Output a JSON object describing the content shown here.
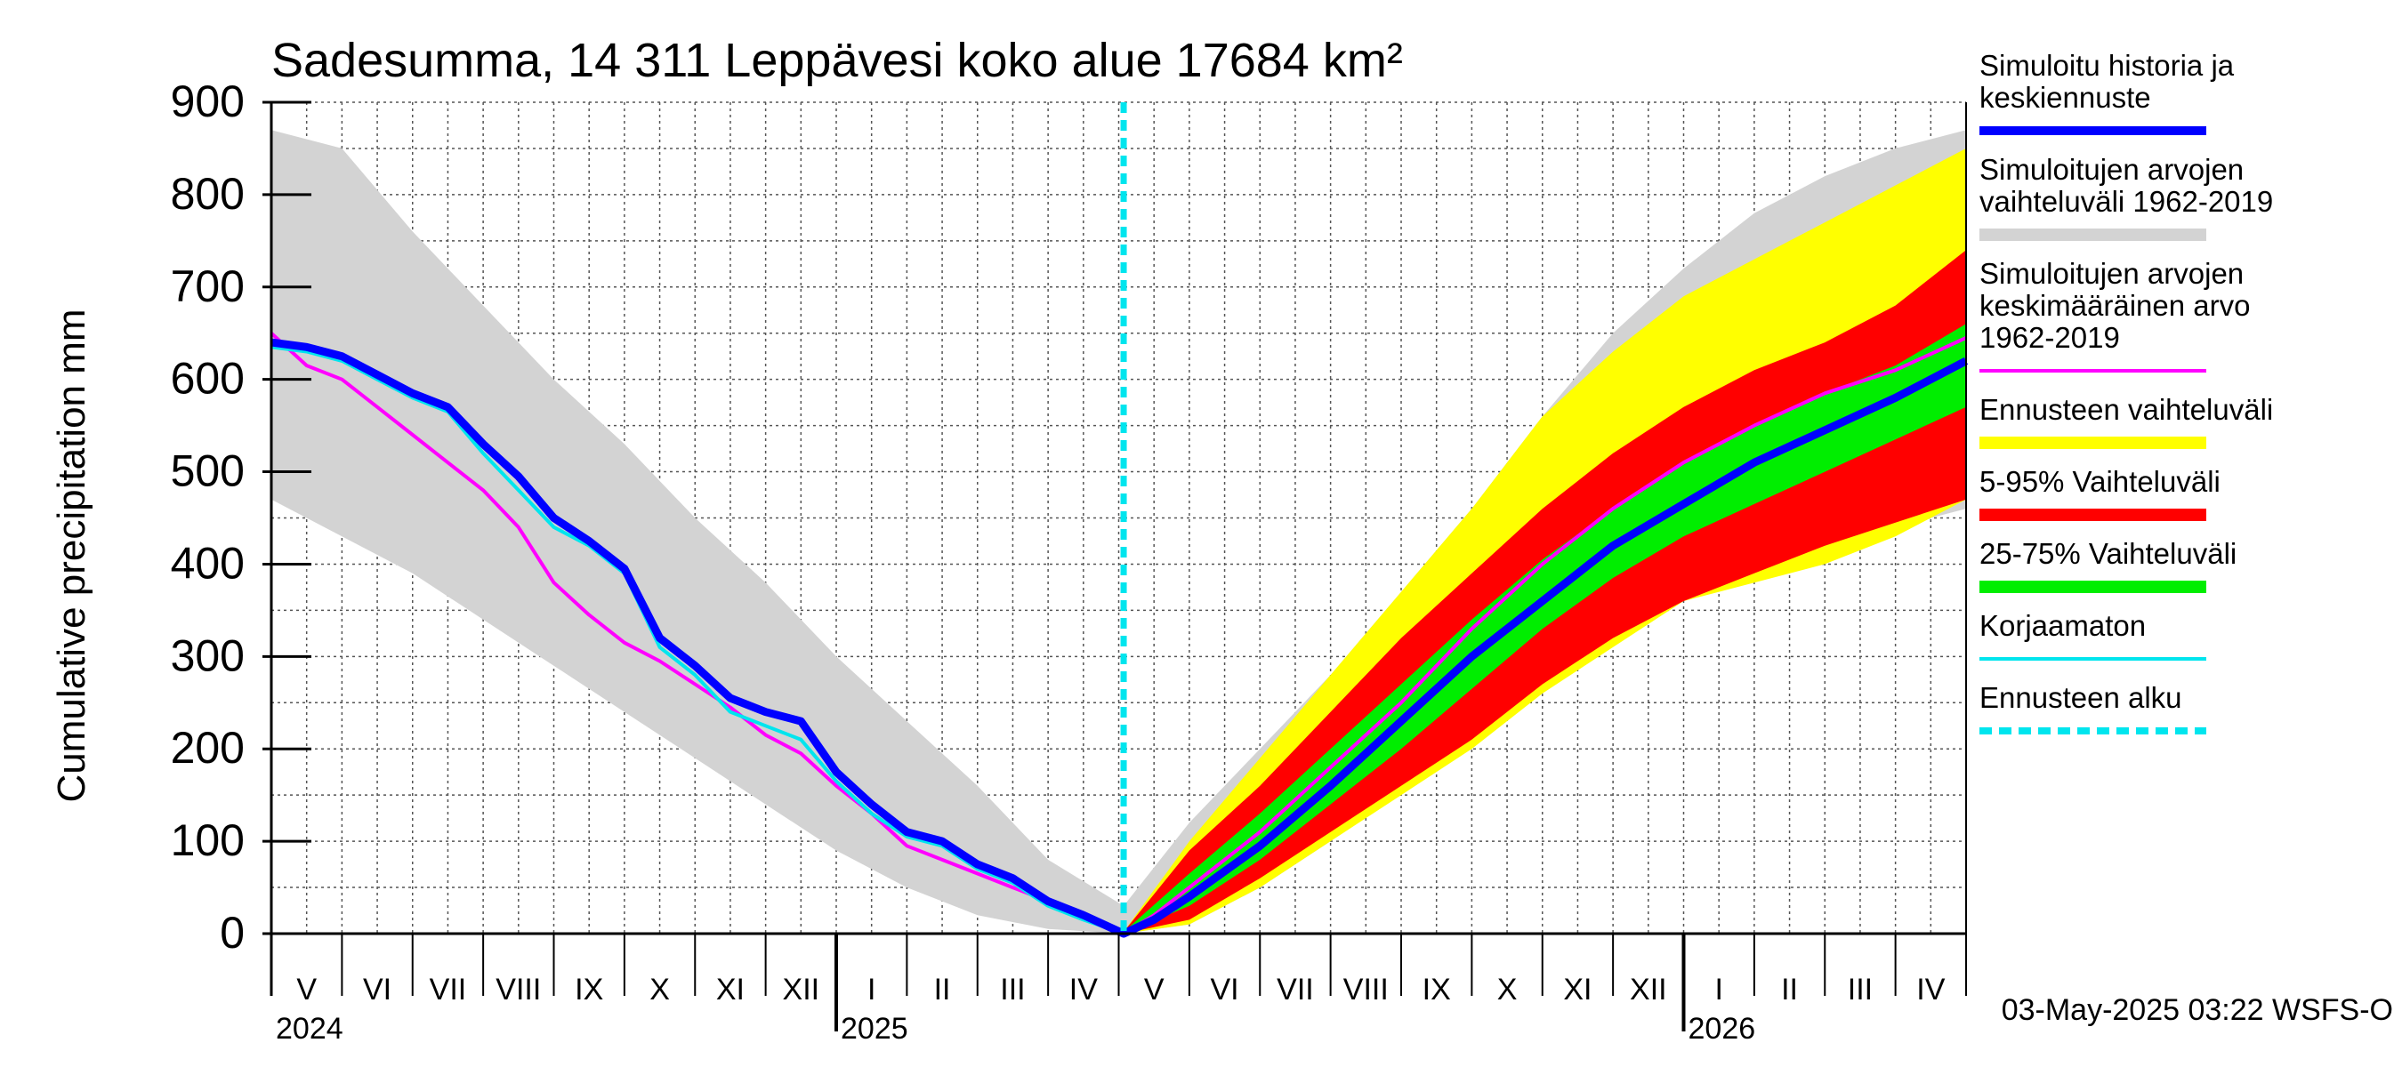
{
  "chart_data": {
    "type": "area",
    "title": "Sadesumma, 14 311 Leppävesi koko alue 17684 km²",
    "ylabel": "Cumulative precipitation   mm",
    "xlabel": "",
    "ylim": [
      0,
      900
    ],
    "yticks": [
      0,
      100,
      200,
      300,
      400,
      500,
      600,
      700,
      800,
      900
    ],
    "x_unit": "months since 1 May 2024",
    "xlim": [
      0,
      24
    ],
    "forecast_start": 12.07,
    "months": [
      "V",
      "VI",
      "VII",
      "VIII",
      "IX",
      "X",
      "XI",
      "XII",
      "I",
      "II",
      "III",
      "IV",
      "V",
      "VI",
      "VII",
      "VIII",
      "IX",
      "X",
      "XI",
      "XII",
      "I",
      "II",
      "III",
      "IV"
    ],
    "years": [
      {
        "label": "2024",
        "x": 0
      },
      {
        "label": "2025",
        "x": 8
      },
      {
        "label": "2026",
        "x": 20
      }
    ],
    "timestamp": "03-May-2025 03:22 WSFS-O",
    "legend": [
      {
        "label": "Simuloitu historia ja keskiennuste",
        "lines": [
          "Simuloitu historia ja",
          "keskiennuste"
        ],
        "color": "#0000ff",
        "style": "thick"
      },
      {
        "label": "Simuloitujen arvojen vaihteluväli 1962-2019",
        "lines": [
          "Simuloitujen arvojen",
          "vaihteluväli 1962-2019"
        ],
        "color": "#d3d3d3",
        "style": "band"
      },
      {
        "label": "Simuloitujen arvojen keskimääräinen arvo 1962-2019",
        "lines": [
          "Simuloitujen arvojen",
          "keskimääräinen arvo",
          "   1962-2019"
        ],
        "color": "#ff00ff",
        "style": "thin"
      },
      {
        "label": "Ennusteen vaihteluväli",
        "lines": [
          "Ennusteen vaihteluväli"
        ],
        "color": "#ffff00",
        "style": "band"
      },
      {
        "label": "5-95% Vaihteluväli",
        "lines": [
          "5-95% Vaihteluväli"
        ],
        "color": "#ff0000",
        "style": "band"
      },
      {
        "label": "25-75% Vaihteluväli",
        "lines": [
          "25-75% Vaihteluväli"
        ],
        "color": "#00ee00",
        "style": "band"
      },
      {
        "label": "Korjaamaton",
        "lines": [
          "Korjaamaton"
        ],
        "color": "#00e5ee",
        "style": "thin"
      },
      {
        "label": "Ennusteen alku",
        "lines": [
          "Ennusteen alku"
        ],
        "color": "#00e5ee",
        "style": "dashed"
      }
    ],
    "series": [
      {
        "name": "Simuloitujen arvojen vaihteluväli 1962-2019",
        "kind": "band",
        "color": "#d3d3d3",
        "x": [
          0,
          1,
          2,
          3,
          4,
          5,
          6,
          7,
          8,
          9,
          10,
          11,
          12.07,
          13,
          14,
          15,
          16,
          17,
          18,
          19,
          20,
          21,
          22,
          23,
          24
        ],
        "upper": [
          870,
          850,
          760,
          680,
          600,
          530,
          450,
          380,
          300,
          230,
          160,
          80,
          30,
          120,
          200,
          280,
          370,
          460,
          560,
          650,
          720,
          780,
          820,
          850,
          870
        ],
        "lower": [
          470,
          430,
          390,
          340,
          290,
          240,
          190,
          140,
          90,
          50,
          20,
          5,
          0,
          10,
          50,
          100,
          160,
          220,
          280,
          320,
          370,
          400,
          420,
          440,
          460
        ]
      },
      {
        "name": "Ennusteen vaihteluväli",
        "kind": "band",
        "color": "#ffff00",
        "x": [
          12.07,
          13,
          14,
          15,
          16,
          17,
          18,
          19,
          20,
          21,
          22,
          23,
          24
        ],
        "upper": [
          2,
          100,
          190,
          280,
          370,
          460,
          560,
          630,
          690,
          730,
          770,
          810,
          850
        ],
        "lower": [
          0,
          10,
          50,
          100,
          150,
          200,
          260,
          310,
          360,
          380,
          400,
          430,
          470
        ]
      },
      {
        "name": "5-95% Vaihteluväli",
        "kind": "band",
        "color": "#ff0000",
        "x": [
          12.07,
          13,
          14,
          15,
          16,
          17,
          18,
          19,
          20,
          21,
          22,
          23,
          24
        ],
        "upper": [
          2,
          90,
          160,
          240,
          320,
          390,
          460,
          520,
          570,
          610,
          640,
          680,
          740
        ],
        "lower": [
          0,
          15,
          60,
          110,
          160,
          210,
          270,
          320,
          360,
          390,
          420,
          445,
          470
        ]
      },
      {
        "name": "25-75% Vaihteluväli",
        "kind": "band",
        "color": "#00ee00",
        "x": [
          12.07,
          13,
          14,
          15,
          16,
          17,
          18,
          19,
          20,
          21,
          22,
          23,
          24
        ],
        "upper": [
          2,
          65,
          130,
          200,
          270,
          340,
          405,
          460,
          510,
          550,
          585,
          615,
          660
        ],
        "lower": [
          0,
          30,
          80,
          140,
          200,
          265,
          330,
          385,
          430,
          465,
          500,
          535,
          570
        ]
      },
      {
        "name": "Simuloitujen arvojen keskimääräinen arvo 1962-2019",
        "kind": "line",
        "color": "#ff00ff",
        "x": [
          0,
          0.5,
          1,
          1.5,
          2,
          2.5,
          3,
          3.5,
          4,
          4.5,
          5,
          5.5,
          6,
          6.5,
          7,
          7.5,
          8,
          8.5,
          9,
          9.5,
          10,
          10.5,
          11,
          11.5,
          12.07,
          12.5,
          13,
          14,
          15,
          16,
          17,
          18,
          19,
          20,
          21,
          22,
          23,
          24
        ],
        "y": [
          650,
          615,
          600,
          570,
          540,
          510,
          480,
          440,
          380,
          345,
          315,
          295,
          270,
          245,
          215,
          195,
          160,
          130,
          95,
          80,
          65,
          50,
          35,
          20,
          0,
          20,
          50,
          110,
          180,
          250,
          330,
          400,
          460,
          510,
          550,
          585,
          610,
          645
        ]
      },
      {
        "name": "Korjaamaton",
        "kind": "line",
        "color": "#00e5ee",
        "x": [
          0,
          0.5,
          1,
          1.5,
          2,
          2.5,
          3,
          3.5,
          4,
          4.5,
          5,
          5.5,
          6,
          6.5,
          7,
          7.5,
          8,
          8.5,
          9,
          9.5,
          10,
          10.5,
          11,
          11.5,
          12.07
        ],
        "y": [
          635,
          630,
          620,
          600,
          580,
          565,
          520,
          480,
          440,
          420,
          390,
          310,
          280,
          240,
          225,
          210,
          165,
          130,
          105,
          95,
          70,
          55,
          30,
          15,
          0
        ]
      },
      {
        "name": "Simuloitu historia ja keskiennuste",
        "kind": "line",
        "color": "#0000ff",
        "x": [
          0,
          0.5,
          1,
          1.5,
          2,
          2.5,
          3,
          3.5,
          4,
          4.5,
          5,
          5.5,
          6,
          6.5,
          7,
          7.5,
          8,
          8.5,
          9,
          9.5,
          10,
          10.5,
          11,
          11.5,
          12.07,
          12.5,
          13,
          14,
          15,
          16,
          17,
          18,
          19,
          20,
          21,
          22,
          23,
          24
        ],
        "y": [
          640,
          635,
          625,
          605,
          585,
          570,
          530,
          495,
          450,
          425,
          395,
          320,
          290,
          255,
          240,
          230,
          175,
          140,
          110,
          100,
          75,
          60,
          35,
          20,
          0,
          15,
          40,
          95,
          160,
          230,
          300,
          360,
          420,
          465,
          510,
          545,
          580,
          620
        ]
      }
    ]
  }
}
